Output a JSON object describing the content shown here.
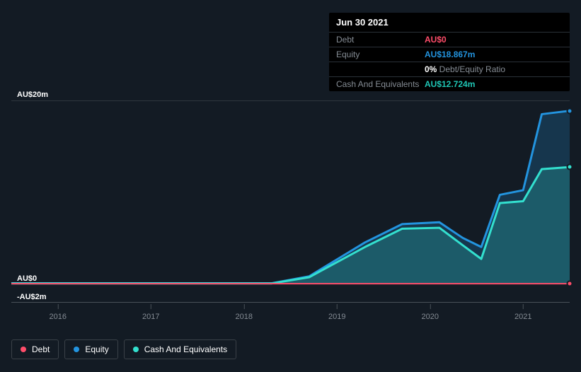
{
  "tooltip": {
    "date": "Jun 30 2021",
    "rows": [
      {
        "label": "Debt",
        "value": "AU$0",
        "color": "#ff4d6a"
      },
      {
        "label": "Equity",
        "value": "AU$18.867m",
        "color": "#2394df"
      },
      {
        "label": "",
        "value": "0%",
        "suffix": " Debt/Equity Ratio",
        "color": "#ffffff"
      },
      {
        "label": "Cash And Equivalents",
        "value": "AU$12.724m",
        "color": "#1fc7b6"
      }
    ]
  },
  "chart": {
    "type": "area",
    "background_color": "#131b24",
    "grid_color": "#4a5158",
    "ylim": [
      -2,
      20
    ],
    "ylabels": [
      {
        "v": 20,
        "text": "AU$20m"
      },
      {
        "v": 0,
        "text": "AU$0"
      },
      {
        "v": -2,
        "text": "-AU$2m"
      }
    ],
    "xlim": [
      2015.5,
      2021.5
    ],
    "xticks": [
      2016,
      2017,
      2018,
      2019,
      2020,
      2021
    ],
    "series": {
      "equity": {
        "label": "Equity",
        "color": "#2394df",
        "fill": "rgba(35,148,223,0.22)",
        "width": 3,
        "data": [
          [
            2015.5,
            0.05
          ],
          [
            2018.3,
            0.05
          ],
          [
            2018.7,
            0.8
          ],
          [
            2019.3,
            4.5
          ],
          [
            2019.7,
            6.5
          ],
          [
            2020.1,
            6.7
          ],
          [
            2020.35,
            5.0
          ],
          [
            2020.55,
            4.0
          ],
          [
            2020.75,
            9.7
          ],
          [
            2021.0,
            10.2
          ],
          [
            2021.2,
            18.5
          ],
          [
            2021.5,
            18.867
          ]
        ]
      },
      "cash": {
        "label": "Cash And Equivalents",
        "color": "#33e0cf",
        "fill": "rgba(51,224,207,0.22)",
        "width": 3,
        "data": [
          [
            2015.5,
            0.03
          ],
          [
            2018.3,
            0.03
          ],
          [
            2018.7,
            0.7
          ],
          [
            2019.3,
            4.0
          ],
          [
            2019.7,
            6.0
          ],
          [
            2020.1,
            6.1
          ],
          [
            2020.35,
            4.2
          ],
          [
            2020.55,
            2.7
          ],
          [
            2020.75,
            8.8
          ],
          [
            2021.0,
            9.0
          ],
          [
            2021.2,
            12.5
          ],
          [
            2021.5,
            12.724
          ]
        ]
      },
      "debt": {
        "label": "Debt",
        "color": "#ff4d6a",
        "fill": "none",
        "width": 2,
        "data": [
          [
            2015.5,
            0
          ],
          [
            2021.5,
            0
          ]
        ]
      }
    },
    "markers_x": 2021.5
  },
  "legend": [
    {
      "label": "Debt",
      "color": "#ff4d6a"
    },
    {
      "label": "Equity",
      "color": "#2394df"
    },
    {
      "label": "Cash And Equivalents",
      "color": "#33e0cf"
    }
  ]
}
